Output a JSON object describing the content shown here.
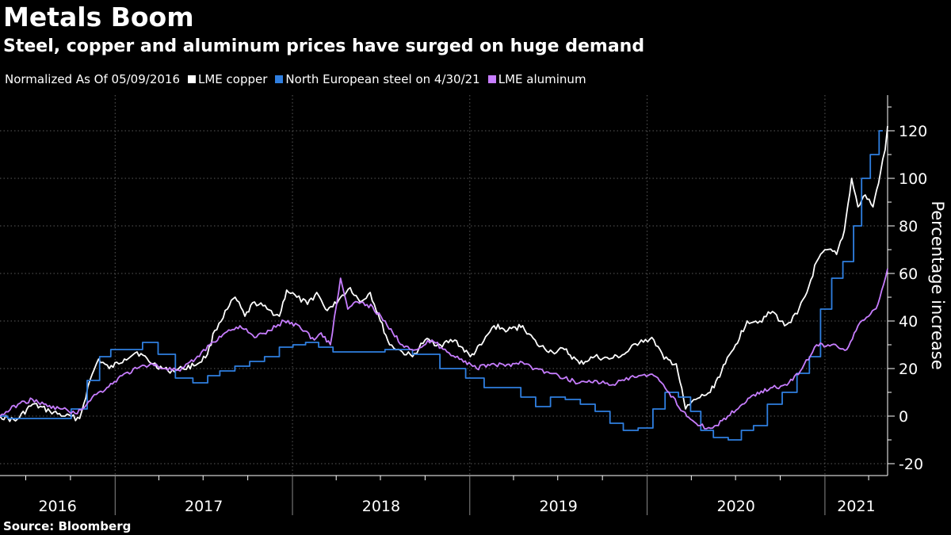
{
  "header": {
    "title": "Metals Boom",
    "subtitle": "Steel, copper and aluminum prices have surged on huge demand"
  },
  "legend": {
    "note": "Normalized As Of 05/09/2016"
  },
  "footer": {
    "source": "Source: Bloomberg"
  },
  "chart_data": {
    "type": "line",
    "title": "Metals Boom",
    "subtitle": "Steel, copper and aluminum prices have surged on huge demand",
    "xlabel": "",
    "ylabel": "Percentage increase",
    "xlim": [
      "2016-05-09",
      "2021-05-10"
    ],
    "ylim": [
      -25,
      135
    ],
    "y_ticks": [
      -20,
      0,
      20,
      40,
      60,
      80,
      100,
      120
    ],
    "x_tick_labels": [
      "2016",
      "2017",
      "2018",
      "2019",
      "2020",
      "2021"
    ],
    "y_axis_position": "right",
    "grid": true,
    "legend_position": "top-left",
    "series": [
      {
        "name": "LME copper",
        "color": "#ffffff",
        "points": [
          [
            "2016-05-09",
            0
          ],
          [
            "2016-06-10",
            -2
          ],
          [
            "2016-07-15",
            5
          ],
          [
            "2016-08-20",
            2
          ],
          [
            "2016-09-20",
            0
          ],
          [
            "2016-10-20",
            -1
          ],
          [
            "2016-11-10",
            15
          ],
          [
            "2016-11-28",
            24
          ],
          [
            "2016-12-20",
            20
          ],
          [
            "2017-01-20",
            24
          ],
          [
            "2017-02-15",
            27
          ],
          [
            "2017-03-20",
            22
          ],
          [
            "2017-04-20",
            19
          ],
          [
            "2017-05-20",
            20
          ],
          [
            "2017-06-20",
            22
          ],
          [
            "2017-07-10",
            26
          ],
          [
            "2017-07-25",
            36
          ],
          [
            "2017-08-20",
            45
          ],
          [
            "2017-09-05",
            50
          ],
          [
            "2017-09-25",
            42
          ],
          [
            "2017-10-15",
            48
          ],
          [
            "2017-11-10",
            45
          ],
          [
            "2017-12-05",
            42
          ],
          [
            "2017-12-20",
            53
          ],
          [
            "2018-01-10",
            50
          ],
          [
            "2018-02-01",
            47
          ],
          [
            "2018-02-20",
            52
          ],
          [
            "2018-03-10",
            45
          ],
          [
            "2018-03-25",
            46
          ],
          [
            "2018-04-10",
            50
          ],
          [
            "2018-04-30",
            54
          ],
          [
            "2018-05-20",
            48
          ],
          [
            "2018-06-10",
            52
          ],
          [
            "2018-07-01",
            40
          ],
          [
            "2018-07-20",
            30
          ],
          [
            "2018-08-15",
            27
          ],
          [
            "2018-09-05",
            25
          ],
          [
            "2018-10-01",
            32
          ],
          [
            "2018-11-01",
            30
          ],
          [
            "2018-12-01",
            32
          ],
          [
            "2019-01-02",
            25
          ],
          [
            "2019-01-25",
            30
          ],
          [
            "2019-02-20",
            38
          ],
          [
            "2019-03-20",
            36
          ],
          [
            "2019-04-20",
            38
          ],
          [
            "2019-05-20",
            30
          ],
          [
            "2019-06-20",
            27
          ],
          [
            "2019-07-15",
            28
          ],
          [
            "2019-08-15",
            22
          ],
          [
            "2019-09-15",
            25
          ],
          [
            "2019-10-15",
            24
          ],
          [
            "2019-11-15",
            26
          ],
          [
            "2019-12-20",
            32
          ],
          [
            "2020-01-15",
            32
          ],
          [
            "2020-02-05",
            24
          ],
          [
            "2020-03-01",
            22
          ],
          [
            "2020-03-20",
            3
          ],
          [
            "2020-04-10",
            7
          ],
          [
            "2020-05-10",
            10
          ],
          [
            "2020-06-10",
            22
          ],
          [
            "2020-07-01",
            30
          ],
          [
            "2020-07-25",
            40
          ],
          [
            "2020-08-20",
            40
          ],
          [
            "2020-09-15",
            44
          ],
          [
            "2020-10-10",
            38
          ],
          [
            "2020-11-05",
            43
          ],
          [
            "2020-11-25",
            52
          ],
          [
            "2020-12-15",
            65
          ],
          [
            "2021-01-05",
            70
          ],
          [
            "2021-01-25",
            68
          ],
          [
            "2021-02-10",
            78
          ],
          [
            "2021-02-25",
            100
          ],
          [
            "2021-03-10",
            88
          ],
          [
            "2021-03-25",
            93
          ],
          [
            "2021-04-10",
            88
          ],
          [
            "2021-04-25",
            102
          ],
          [
            "2021-05-05",
            112
          ],
          [
            "2021-05-10",
            122
          ]
        ]
      },
      {
        "name": "North European steel on 4/30/21",
        "color": "#2f7fe0",
        "points": [
          [
            "2016-05-09",
            0
          ],
          [
            "2016-06-10",
            -1
          ],
          [
            "2016-08-15",
            -1
          ],
          [
            "2016-09-15",
            -1
          ],
          [
            "2016-10-20",
            3
          ],
          [
            "2016-11-20",
            15
          ],
          [
            "2016-12-10",
            25
          ],
          [
            "2017-01-05",
            28
          ],
          [
            "2017-02-15",
            28
          ],
          [
            "2017-03-10",
            31
          ],
          [
            "2017-04-20",
            26
          ],
          [
            "2017-05-20",
            16
          ],
          [
            "2017-07-01",
            14
          ],
          [
            "2017-07-20",
            17
          ],
          [
            "2017-08-20",
            19
          ],
          [
            "2017-09-20",
            21
          ],
          [
            "2017-10-20",
            23
          ],
          [
            "2017-11-20",
            25
          ],
          [
            "2017-12-20",
            29
          ],
          [
            "2018-01-15",
            30
          ],
          [
            "2018-02-10",
            31
          ],
          [
            "2018-03-10",
            29
          ],
          [
            "2018-04-10",
            27
          ],
          [
            "2018-06-10",
            27
          ],
          [
            "2018-08-10",
            28
          ],
          [
            "2018-10-01",
            26
          ],
          [
            "2018-12-01",
            20
          ],
          [
            "2019-01-15",
            16
          ],
          [
            "2019-02-15",
            12
          ],
          [
            "2019-04-01",
            12
          ],
          [
            "2019-05-01",
            8
          ],
          [
            "2019-06-01",
            4
          ],
          [
            "2019-07-01",
            8
          ],
          [
            "2019-08-01",
            7
          ],
          [
            "2019-09-01",
            5
          ],
          [
            "2019-10-01",
            2
          ],
          [
            "2019-11-01",
            -3
          ],
          [
            "2019-11-25",
            -6
          ],
          [
            "2020-01-01",
            -5
          ],
          [
            "2020-01-25",
            3
          ],
          [
            "2020-02-20",
            10
          ],
          [
            "2020-03-20",
            8
          ],
          [
            "2020-04-10",
            2
          ],
          [
            "2020-05-01",
            -6
          ],
          [
            "2020-06-01",
            -9
          ],
          [
            "2020-07-01",
            -10
          ],
          [
            "2020-07-25",
            -6
          ],
          [
            "2020-08-20",
            -4
          ],
          [
            "2020-09-20",
            5
          ],
          [
            "2020-10-20",
            10
          ],
          [
            "2020-11-20",
            18
          ],
          [
            "2020-12-10",
            25
          ],
          [
            "2021-01-05",
            45
          ],
          [
            "2021-01-25",
            58
          ],
          [
            "2021-02-20",
            65
          ],
          [
            "2021-03-10",
            80
          ],
          [
            "2021-03-25",
            100
          ],
          [
            "2021-04-15",
            110
          ],
          [
            "2021-04-30",
            120
          ]
        ]
      },
      {
        "name": "LME aluminum",
        "color": "#c77dff",
        "points": [
          [
            "2016-05-09",
            0
          ],
          [
            "2016-06-15",
            5
          ],
          [
            "2016-07-15",
            7
          ],
          [
            "2016-08-15",
            4
          ],
          [
            "2016-09-15",
            3
          ],
          [
            "2016-10-15",
            1
          ],
          [
            "2016-11-15",
            8
          ],
          [
            "2016-12-15",
            12
          ],
          [
            "2017-01-15",
            17
          ],
          [
            "2017-02-15",
            20
          ],
          [
            "2017-03-15",
            22
          ],
          [
            "2017-04-15",
            20
          ],
          [
            "2017-05-15",
            19
          ],
          [
            "2017-06-15",
            24
          ],
          [
            "2017-07-15",
            30
          ],
          [
            "2017-08-15",
            35
          ],
          [
            "2017-09-15",
            38
          ],
          [
            "2017-10-15",
            33
          ],
          [
            "2017-11-15",
            36
          ],
          [
            "2017-12-15",
            40
          ],
          [
            "2018-01-15",
            38
          ],
          [
            "2018-02-15",
            32
          ],
          [
            "2018-03-01",
            35
          ],
          [
            "2018-03-20",
            30
          ],
          [
            "2018-04-10",
            58
          ],
          [
            "2018-04-25",
            45
          ],
          [
            "2018-05-15",
            48
          ],
          [
            "2018-06-15",
            46
          ],
          [
            "2018-07-15",
            38
          ],
          [
            "2018-08-15",
            30
          ],
          [
            "2018-09-15",
            28
          ],
          [
            "2018-10-15",
            32
          ],
          [
            "2018-11-15",
            27
          ],
          [
            "2018-12-15",
            24
          ],
          [
            "2019-01-15",
            20
          ],
          [
            "2019-02-15",
            22
          ],
          [
            "2019-03-15",
            21
          ],
          [
            "2019-04-15",
            23
          ],
          [
            "2019-05-15",
            20
          ],
          [
            "2019-06-15",
            18
          ],
          [
            "2019-07-15",
            16
          ],
          [
            "2019-08-15",
            14
          ],
          [
            "2019-09-15",
            15
          ],
          [
            "2019-10-15",
            13
          ],
          [
            "2019-11-15",
            15
          ],
          [
            "2019-12-15",
            17
          ],
          [
            "2020-01-15",
            17
          ],
          [
            "2020-02-15",
            10
          ],
          [
            "2020-03-15",
            2
          ],
          [
            "2020-04-15",
            -4
          ],
          [
            "2020-05-15",
            -5
          ],
          [
            "2020-06-15",
            0
          ],
          [
            "2020-07-15",
            5
          ],
          [
            "2020-08-15",
            10
          ],
          [
            "2020-09-15",
            12
          ],
          [
            "2020-10-15",
            13
          ],
          [
            "2020-11-15",
            20
          ],
          [
            "2020-12-15",
            30
          ],
          [
            "2021-01-15",
            30
          ],
          [
            "2021-02-15",
            28
          ],
          [
            "2021-03-10",
            38
          ],
          [
            "2021-04-01",
            42
          ],
          [
            "2021-04-20",
            47
          ],
          [
            "2021-05-10",
            62
          ]
        ]
      }
    ]
  }
}
